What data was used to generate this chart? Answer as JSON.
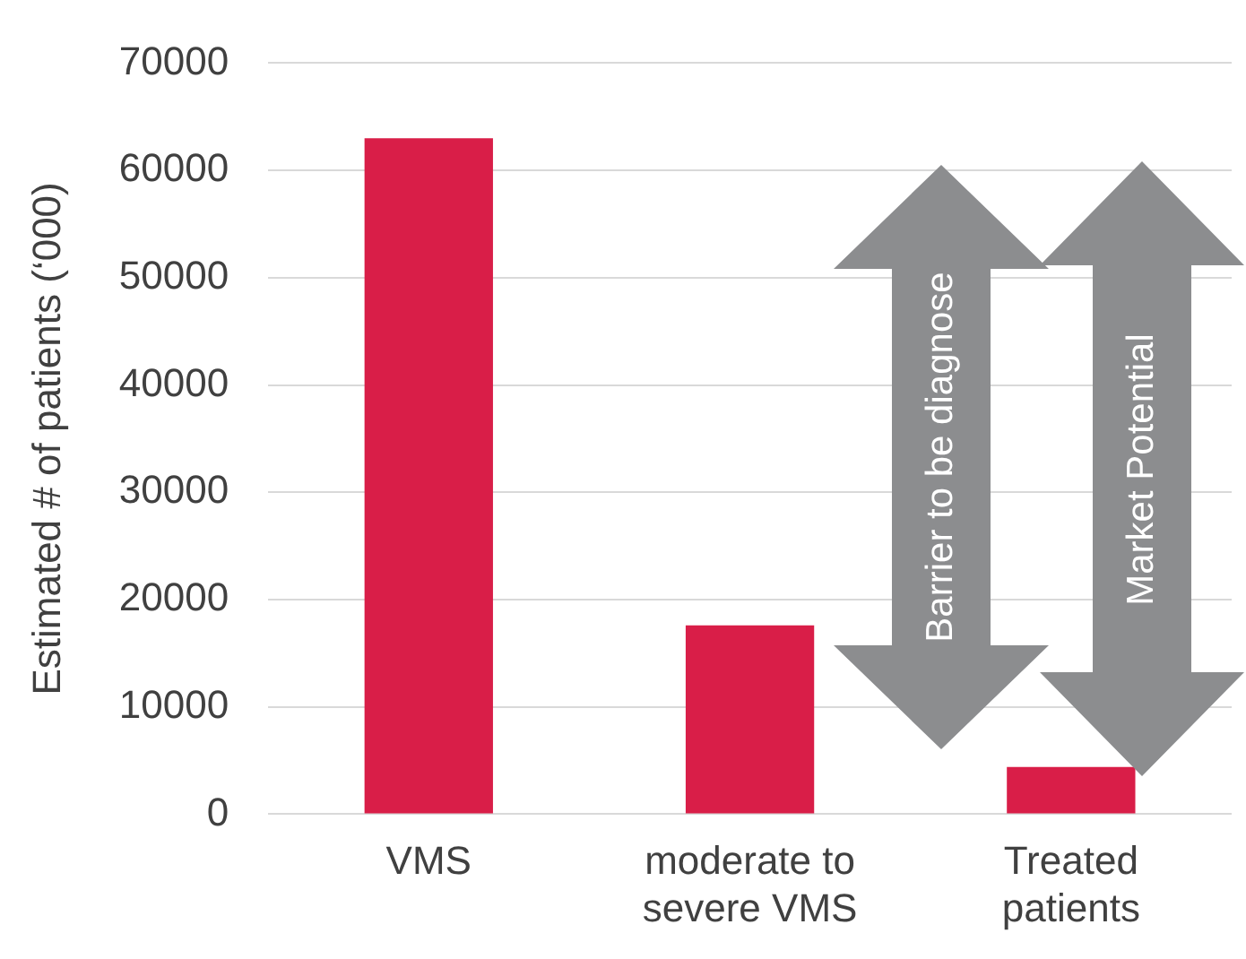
{
  "chart_data": {
    "type": "bar",
    "ylabel": "Estimated # of patients (‘000)",
    "categories": [
      "VMS",
      "moderate to severe VMS",
      "Treated patients"
    ],
    "values": [
      63000,
      17600,
      4400
    ],
    "color": "#d91e48",
    "ylim": [
      0,
      70000
    ],
    "yticks": [
      0,
      10000,
      20000,
      30000,
      40000,
      50000,
      60000,
      70000
    ],
    "grid": "y",
    "annotations": [
      "Barrier to be diagnose",
      "Market Potential"
    ]
  }
}
